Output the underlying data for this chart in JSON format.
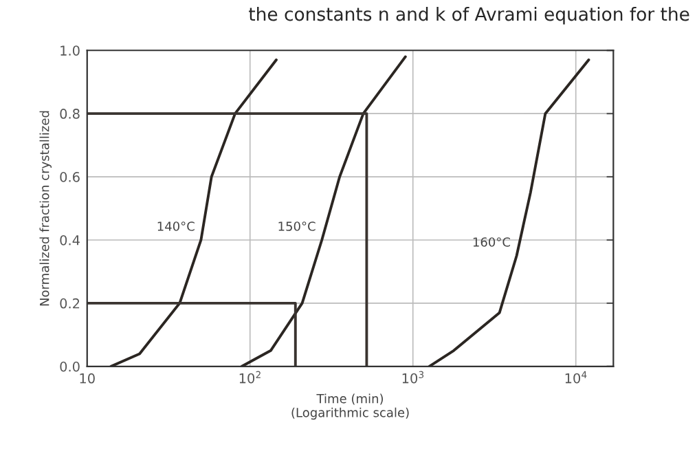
{
  "chart_data": {
    "type": "line",
    "title": "the constants n and k of Avrami equation for the",
    "xlabel": "Time (min)\n(Logarithmic scale)",
    "ylabel": "Normalized fraction crystallized",
    "log": "x",
    "xlim": [
      10,
      17000
    ],
    "ylim": [
      0,
      1
    ],
    "xticks": [
      {
        "value": 10,
        "label": "10"
      },
      {
        "value": 100,
        "label": "10$^{2}$"
      },
      {
        "value": 1000,
        "label": "10$^{3}$"
      },
      {
        "value": 10000,
        "label": "10$^{4}$"
      }
    ],
    "yticks": [
      {
        "value": 0,
        "label": "0.0"
      },
      {
        "value": 0.2,
        "label": "0.2"
      },
      {
        "value": 0.4,
        "label": "0.4"
      },
      {
        "value": 0.6,
        "label": "0.6"
      },
      {
        "value": 0.8,
        "label": "0.8"
      },
      {
        "value": 1,
        "label": "1.0"
      }
    ],
    "grid": true,
    "legend": false,
    "marker": "none",
    "line_style": "solid",
    "series": [
      {
        "name": "140°C",
        "color": "#2b2622",
        "x": [
          14,
          21,
          37,
          50,
          58,
          81,
          145
        ],
        "values": [
          0,
          0.04,
          0.2,
          0.4,
          0.6,
          0.8,
          0.97
        ]
      },
      {
        "name": "150°C",
        "color": "#2b2622",
        "x": [
          89,
          134,
          209,
          276,
          355,
          496,
          900
        ],
        "values": [
          0,
          0.05,
          0.2,
          0.4,
          0.6,
          0.8,
          0.98
        ]
      },
      {
        "name": "160°C",
        "color": "#2b2622",
        "x": [
          1260,
          1780,
          3400,
          4330,
          5270,
          6500,
          12000
        ],
        "values": [
          0,
          0.05,
          0.17,
          0.35,
          0.55,
          0.8,
          0.97
        ]
      },
      {
        "color": "#3a3430",
        "x": [
          10,
          520,
          520
        ],
        "values": [
          0.8,
          0.8,
          0
        ]
      },
      {
        "color": "#3a3430",
        "x": [
          10,
          190,
          190
        ],
        "values": [
          0.2,
          0.2,
          0
        ]
      }
    ]
  }
}
